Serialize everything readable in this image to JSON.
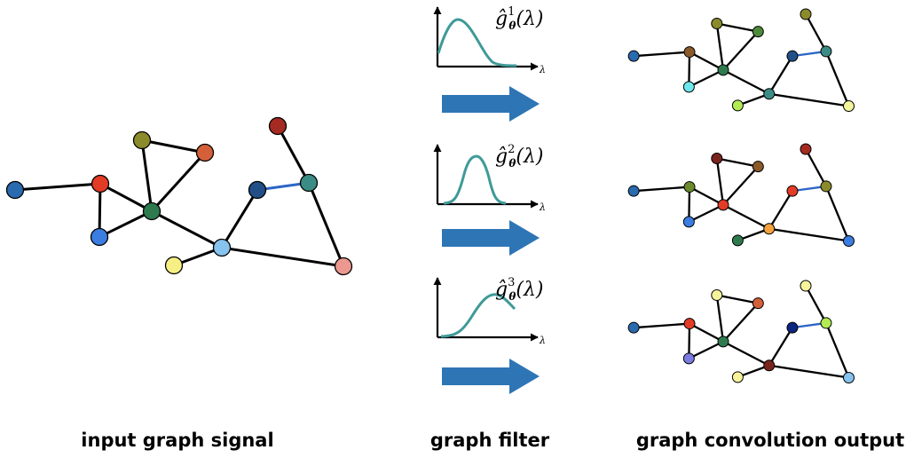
{
  "captions": {
    "input": "input graph signal",
    "filter": "graph filter",
    "output": "graph convolution output"
  },
  "lambda_symbol": "λ",
  "filters": [
    {
      "label": "ĝ",
      "sup": "1",
      "sub": "θ",
      "arg": "(λ)"
    },
    {
      "label": "ĝ",
      "sup": "2",
      "sub": "θ",
      "arg": "(λ)"
    },
    {
      "label": "ĝ",
      "sup": "3",
      "sub": "θ",
      "arg": "(λ)"
    }
  ],
  "colors": {
    "edge": "#000000",
    "highlight_edge": "#2c66c6",
    "arrow": "#2e75b6",
    "filter_curve": "#3f9a98"
  },
  "graphs": {
    "input": [
      "#2a6aae",
      "#e23b26",
      "#2e7a4f",
      "#8b8b2b",
      "#d4603a",
      "#3b7de0",
      "#86c3ee",
      "#f6ef84",
      "#224f87",
      "#3c8c86",
      "#a52a21",
      "#ec9890"
    ],
    "output1": [
      "#2a6aae",
      "#8a5a2a",
      "#2e7a4f",
      "#8b8b2b",
      "#4d8a3a",
      "#6de7ec",
      "#3c8c86",
      "#b2ec52",
      "#224f87",
      "#3c8c86",
      "#8b8b2b",
      "#f2f59c"
    ],
    "output2": [
      "#2a6aae",
      "#6b8a2d",
      "#e23b26",
      "#7a241e",
      "#8a5a2a",
      "#3b7de0",
      "#f5a23c",
      "#2e7a4f",
      "#e23b26",
      "#8b8b2b",
      "#a52a21",
      "#3b7de0"
    ],
    "output3": [
      "#2a6aae",
      "#e23b26",
      "#2e7a4f",
      "#f7f39a",
      "#d4603a",
      "#7b7be0",
      "#7a241e",
      "#f7f39a",
      "#0b2680",
      "#b2ec52",
      "#f7f39a",
      "#86c3ee"
    ]
  }
}
